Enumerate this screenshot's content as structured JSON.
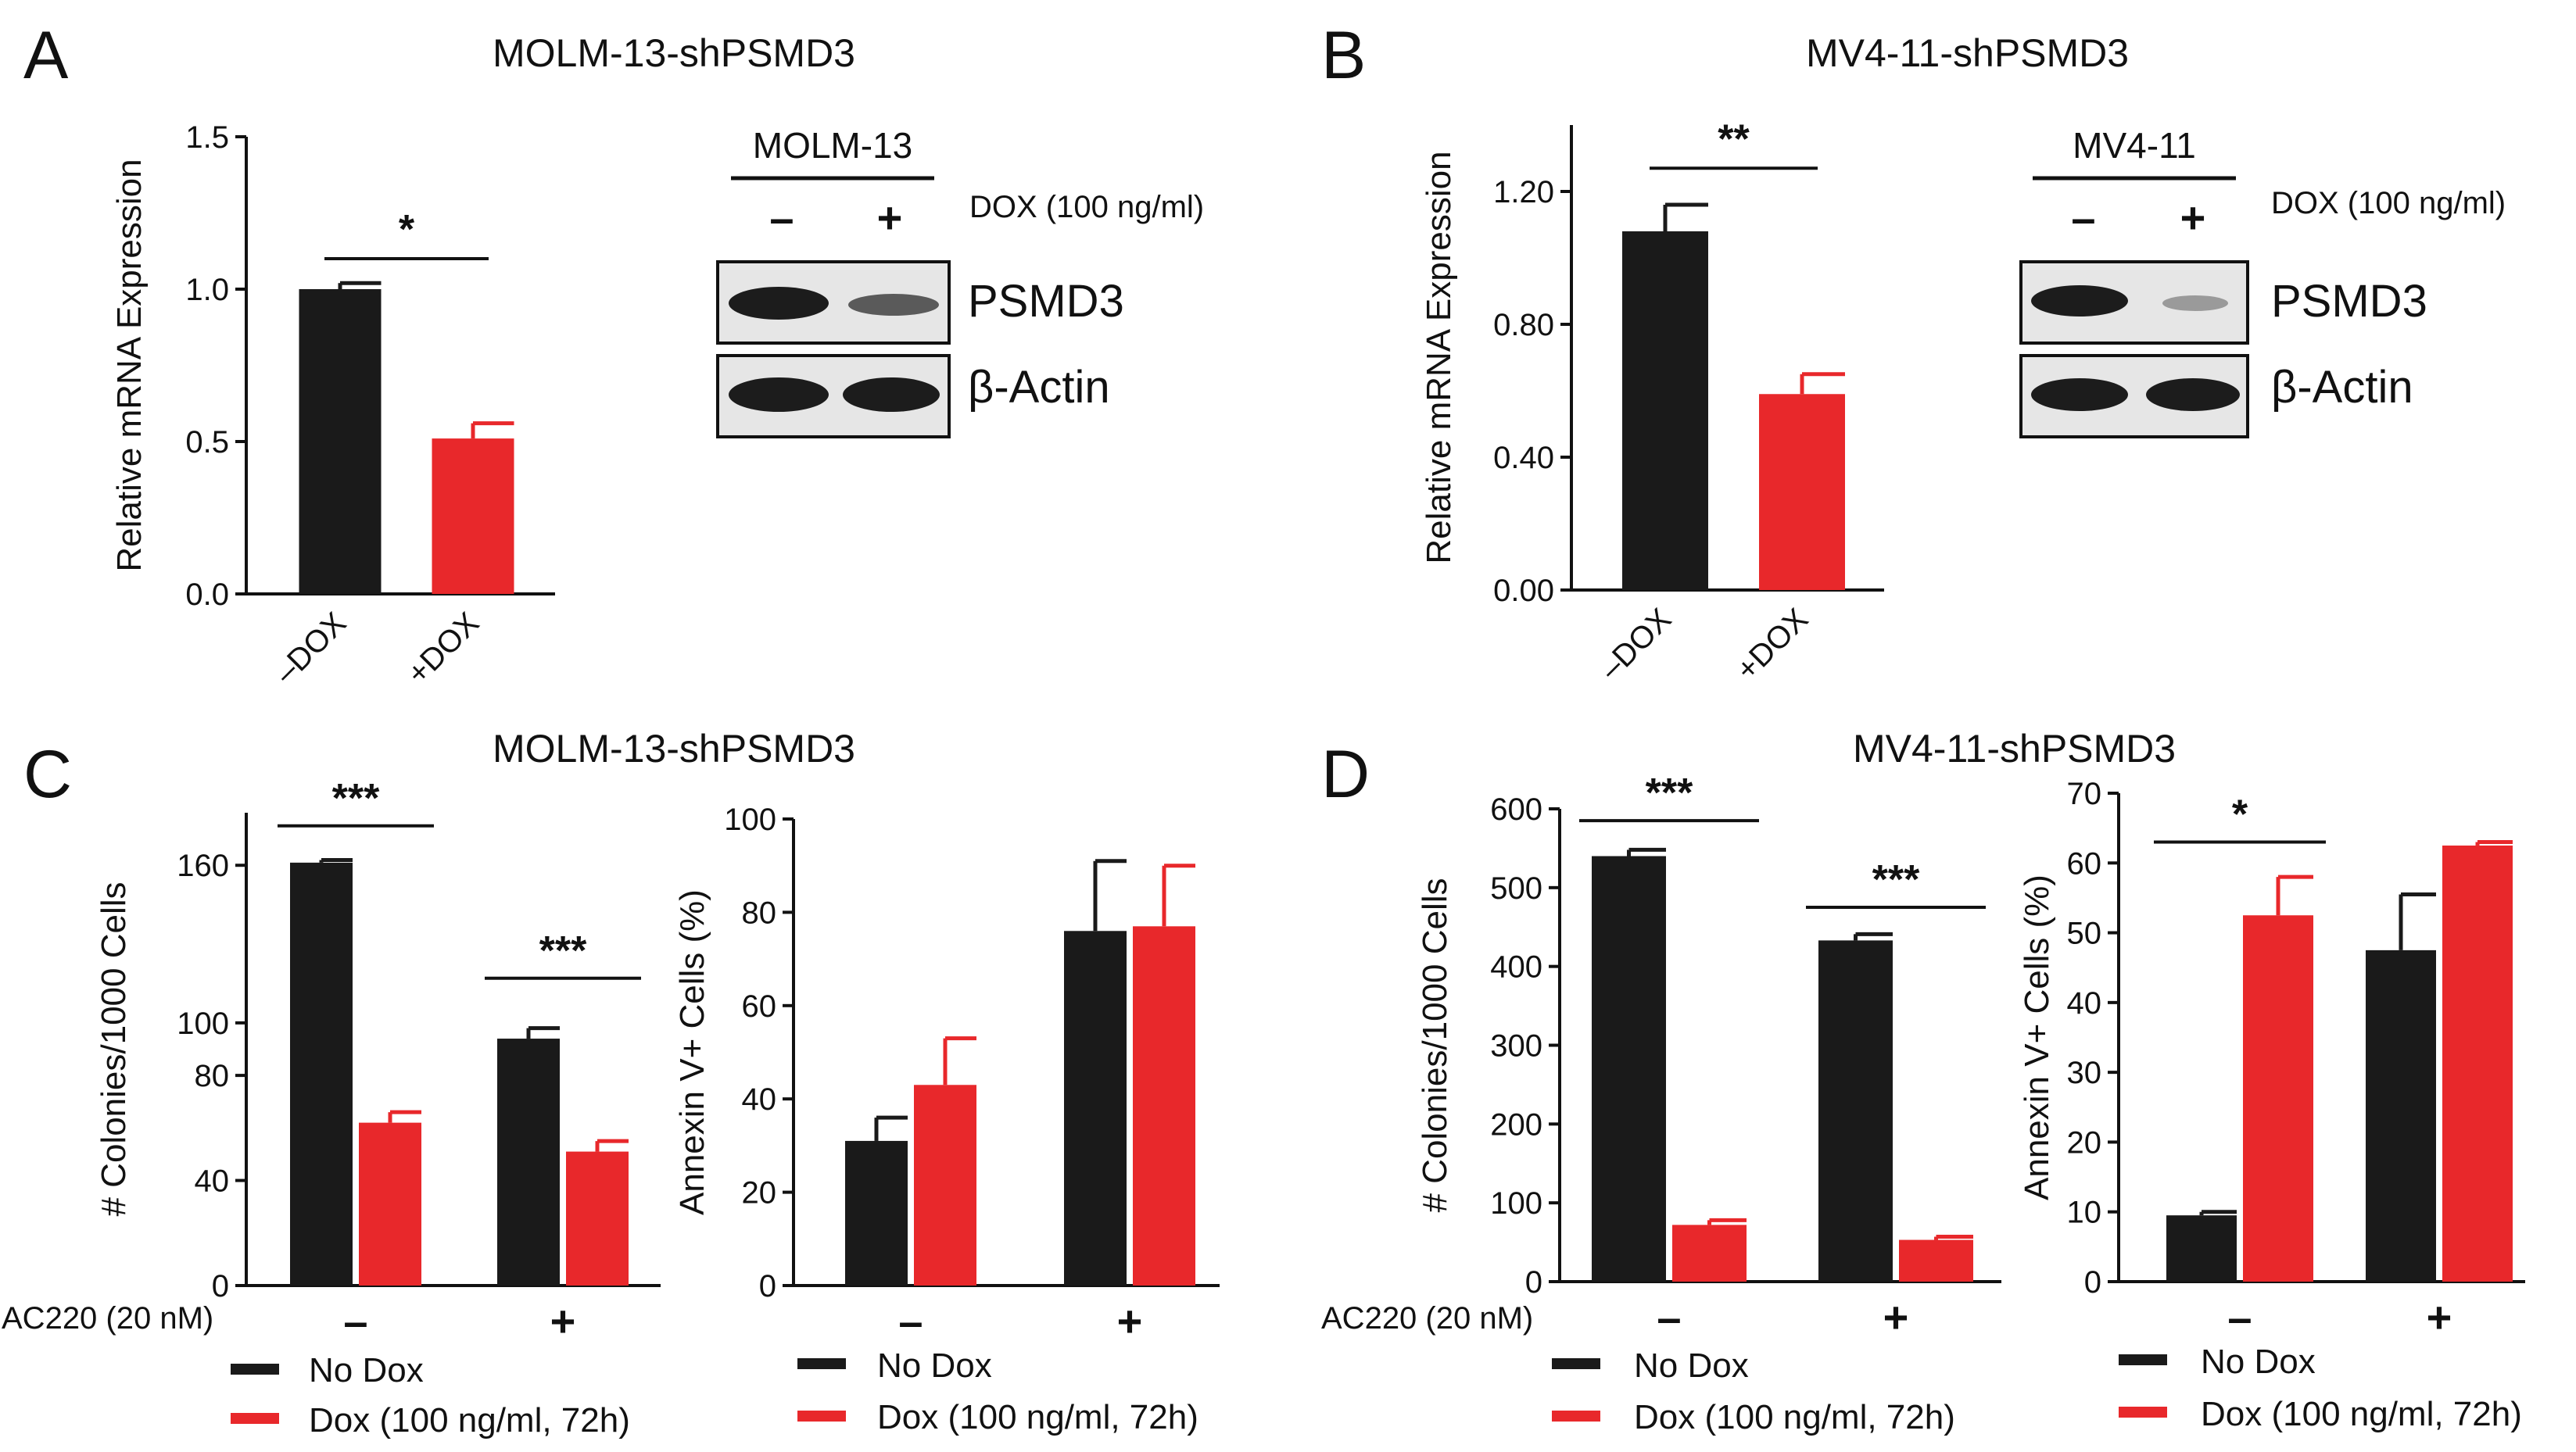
{
  "colors": {
    "no_dox": "#1a1a1a",
    "dox": "#e8282b",
    "axis": "#111111"
  },
  "panels": {
    "A": {
      "letter": "A",
      "title": "MOLM-13-shPSMD3"
    },
    "B": {
      "letter": "B",
      "title": "MV4-11-shPSMD3"
    },
    "C": {
      "letter": "C",
      "title": "MOLM-13-shPSMD3"
    },
    "D": {
      "letter": "D",
      "title": "MV4-11-shPSMD3"
    }
  },
  "western_blots": {
    "A": {
      "cell_line": "MOLM-13",
      "lane_minus": "–",
      "lane_plus": "+",
      "treatment": "DOX (100 ng/ml)",
      "band1": "PSMD3",
      "band2": "β-Actin"
    },
    "B": {
      "cell_line": "MV4-11",
      "lane_minus": "–",
      "lane_plus": "+",
      "treatment": "DOX (100 ng/ml)",
      "band1": "PSMD3",
      "band2": "β-Actin"
    }
  },
  "ac220_label": "AC220 (20 nM)",
  "legend": {
    "no_dox": "No Dox",
    "dox": "Dox (100 ng/ml, 72h)"
  },
  "chart_data": [
    {
      "id": "A",
      "type": "bar",
      "title": "MOLM-13-shPSMD3",
      "ylabel": "Relative mRNA Expression",
      "ylim": [
        0,
        1.5
      ],
      "yticks": [
        0,
        0.5,
        1.0,
        1.5
      ],
      "ytick_labels": [
        "0.0",
        "0.5",
        "1.0",
        "1.5"
      ],
      "categories": [
        "–DOX",
        "+DOX"
      ],
      "bars": [
        {
          "category": "–DOX",
          "value": 1.0,
          "error": 0.02,
          "color": "no_dox"
        },
        {
          "category": "+DOX",
          "value": 0.51,
          "error": 0.05,
          "color": "dox"
        }
      ],
      "significance": [
        {
          "label": "*",
          "between": [
            "–DOX",
            "+DOX"
          ],
          "y": 1.1
        }
      ]
    },
    {
      "id": "B",
      "type": "bar",
      "title": "MV4-11-shPSMD3",
      "ylabel": "Relative mRNA Expression",
      "ylim": [
        0,
        1.4
      ],
      "yticks": [
        0,
        0.4,
        0.8,
        1.2
      ],
      "ytick_labels": [
        "0.00",
        "0.40",
        "0.80",
        "1.20"
      ],
      "categories": [
        "–DOX",
        "+DOX"
      ],
      "bars": [
        {
          "category": "–DOX",
          "value": 1.08,
          "error": 0.08,
          "color": "no_dox"
        },
        {
          "category": "+DOX",
          "value": 0.59,
          "error": 0.06,
          "color": "dox"
        }
      ],
      "significance": [
        {
          "label": "**",
          "between": [
            "–DOX",
            "+DOX"
          ],
          "y": 1.27
        }
      ]
    },
    {
      "id": "C-colonies",
      "type": "bar",
      "title": "MOLM-13-shPSMD3",
      "ylabel": "# Colonies/1000 Cells",
      "ylim": [
        0,
        180
      ],
      "yticks": [
        0,
        40,
        80,
        100,
        160
      ],
      "ytick_labels": [
        "0",
        "40",
        "80",
        "100",
        "160"
      ],
      "categories": [
        "–",
        "+"
      ],
      "xlabel": "AC220 (20 nM)",
      "series": [
        {
          "name": "No Dox",
          "values": [
            161,
            94
          ],
          "errors": [
            1,
            4
          ],
          "color": "no_dox"
        },
        {
          "name": "Dox (100 ng/ml, 72h)",
          "values": [
            62,
            51
          ],
          "errors": [
            4,
            4
          ],
          "color": "dox"
        }
      ],
      "significance": [
        {
          "label": "***",
          "category": "–",
          "y": 175
        },
        {
          "label": "***",
          "category": "+",
          "y": 117
        }
      ]
    },
    {
      "id": "C-annexin",
      "type": "bar",
      "ylabel": "Annexin V+ Cells (%)",
      "ylim": [
        0,
        100
      ],
      "yticks": [
        0,
        20,
        40,
        60,
        80,
        100
      ],
      "ytick_labels": [
        "0",
        "20",
        "40",
        "60",
        "80",
        "100"
      ],
      "categories": [
        "–",
        "+"
      ],
      "series": [
        {
          "name": "No Dox",
          "values": [
            31,
            76
          ],
          "errors": [
            5,
            15
          ],
          "color": "no_dox"
        },
        {
          "name": "Dox (100 ng/ml, 72h)",
          "values": [
            43,
            77
          ],
          "errors": [
            10,
            13
          ],
          "color": "dox"
        }
      ],
      "significance": []
    },
    {
      "id": "D-colonies",
      "type": "bar",
      "title": "MV4-11-shPSMD3",
      "ylabel": "# Colonies/1000 Cells",
      "ylim": [
        0,
        600
      ],
      "yticks": [
        0,
        100,
        200,
        300,
        400,
        500,
        600
      ],
      "ytick_labels": [
        "0",
        "100",
        "200",
        "300",
        "400",
        "500",
        "600"
      ],
      "categories": [
        "–",
        "+"
      ],
      "xlabel": "AC220 (20 nM)",
      "series": [
        {
          "name": "No Dox",
          "values": [
            540,
            433
          ],
          "errors": [
            8,
            8
          ],
          "color": "no_dox"
        },
        {
          "name": "Dox (100 ng/ml, 72h)",
          "values": [
            72,
            53
          ],
          "errors": [
            6,
            4
          ],
          "color": "dox"
        }
      ],
      "significance": [
        {
          "label": "***",
          "category": "–",
          "y": 585
        },
        {
          "label": "***",
          "category": "+",
          "y": 475
        }
      ]
    },
    {
      "id": "D-annexin",
      "type": "bar",
      "ylabel": "Annexin V+ Cells (%)",
      "ylim": [
        0,
        70
      ],
      "yticks": [
        0,
        10,
        20,
        30,
        40,
        50,
        60,
        70
      ],
      "ytick_labels": [
        "0",
        "10",
        "20",
        "30",
        "40",
        "50",
        "60",
        "70"
      ],
      "categories": [
        "–",
        "+"
      ],
      "series": [
        {
          "name": "No Dox",
          "values": [
            9.5,
            47.5
          ],
          "errors": [
            0.5,
            8
          ],
          "color": "no_dox"
        },
        {
          "name": "Dox (100 ng/ml, 72h)",
          "values": [
            52.5,
            62.5
          ],
          "errors": [
            5.5,
            0.5
          ],
          "color": "dox"
        }
      ],
      "significance": [
        {
          "label": "*",
          "category": "–",
          "y": 63
        }
      ]
    }
  ]
}
